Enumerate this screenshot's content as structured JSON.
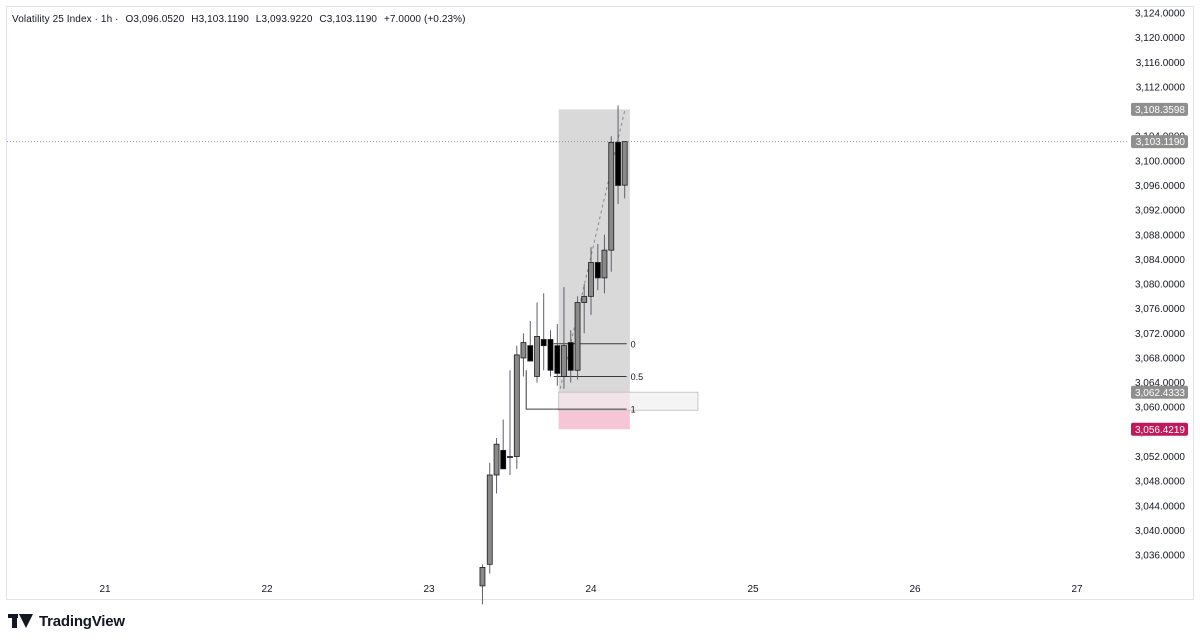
{
  "legend": {
    "symbol": "Volatility 25 Index · 1h ·",
    "open": "O3,096.0520",
    "high": "H3,103.1190",
    "low": "L3,093.9220",
    "close": "C3,103.1190",
    "change": "+7.0000 (+0.23%)"
  },
  "branding": {
    "name": "TradingView",
    "icon": "tradingview-logo-icon"
  },
  "colors": {
    "candle_body": "#8a8a8a",
    "candle_bear": "#000000",
    "wick": "#5d606b",
    "zone_fill": "#d9d9d9",
    "discount_fill": "#f7c6d6",
    "tag_gray": "#8f8f8f",
    "tag_red": "#c2185b"
  },
  "chart_data": {
    "type": "candlestick",
    "title": "Volatility 25 Index · 1h",
    "ylim": [
      3032,
      3126
    ],
    "y_ticks": [
      "3,124.0000",
      "3,120.0000",
      "3,116.0000",
      "3,112.0000",
      "3,108.0000",
      "3,104.0000",
      "3,100.0000",
      "3,096.0000",
      "3,092.0000",
      "3,088.0000",
      "3,084.0000",
      "3,080.0000",
      "3,076.0000",
      "3,072.0000",
      "3,068.0000",
      "3,064.0000",
      "3,060.0000",
      "3,056.0000",
      "3,052.0000",
      "3,048.0000",
      "3,044.0000",
      "3,040.0000",
      "3,036.0000"
    ],
    "y_tick_values": [
      3124,
      3120,
      3116,
      3112,
      3108,
      3104,
      3100,
      3096,
      3092,
      3088,
      3084,
      3080,
      3076,
      3072,
      3068,
      3064,
      3060,
      3056,
      3052,
      3048,
      3044,
      3040,
      3036
    ],
    "x_ticks": [
      "21",
      "22",
      "23",
      "24",
      "25",
      "26",
      "27"
    ],
    "x_tick_days": [
      21,
      22,
      23,
      24,
      25,
      26,
      27
    ],
    "candles": [
      {
        "t": 23.33,
        "o": 3031.0,
        "h": 3034.5,
        "l": 3028.0,
        "c": 3034.0
      },
      {
        "t": 23.375,
        "o": 3034.5,
        "h": 3051.0,
        "l": 3033.0,
        "c": 3049.0
      },
      {
        "t": 23.417,
        "o": 3049.0,
        "h": 3055.0,
        "l": 3046.0,
        "c": 3054.0
      },
      {
        "t": 23.458,
        "o": 3053.0,
        "h": 3058.0,
        "l": 3050.0,
        "c": 3050.0
      },
      {
        "t": 23.5,
        "o": 3052.0,
        "h": 3066.0,
        "l": 3049.0,
        "c": 3052.0
      },
      {
        "t": 23.542,
        "o": 3052.0,
        "h": 3070.0,
        "l": 3050.0,
        "c": 3068.5
      },
      {
        "t": 23.583,
        "o": 3068.0,
        "h": 3072.0,
        "l": 3065.0,
        "c": 3070.5
      },
      {
        "t": 23.625,
        "o": 3070.0,
        "h": 3074.0,
        "l": 3067.5,
        "c": 3067.5
      },
      {
        "t": 23.667,
        "o": 3065.0,
        "h": 3077.0,
        "l": 3064.0,
        "c": 3071.5
      },
      {
        "t": 23.708,
        "o": 3071.0,
        "h": 3078.5,
        "l": 3066.0,
        "c": 3070.0
      },
      {
        "t": 23.75,
        "o": 3071.0,
        "h": 3072.5,
        "l": 3065.0,
        "c": 3066.0
      },
      {
        "t": 23.792,
        "o": 3070.0,
        "h": 3073.5,
        "l": 3063.5,
        "c": 3065.5
      },
      {
        "t": 23.833,
        "o": 3065.0,
        "h": 3079.5,
        "l": 3063.0,
        "c": 3070.0
      },
      {
        "t": 23.875,
        "o": 3070.5,
        "h": 3072.5,
        "l": 3064.0,
        "c": 3066.0
      },
      {
        "t": 23.917,
        "o": 3066.0,
        "h": 3078.0,
        "l": 3064.5,
        "c": 3077.0
      },
      {
        "t": 23.958,
        "o": 3077.0,
        "h": 3080.0,
        "l": 3072.0,
        "c": 3078.0
      },
      {
        "t": 24.0,
        "o": 3078.0,
        "h": 3086.0,
        "l": 3075.0,
        "c": 3083.5
      },
      {
        "t": 24.042,
        "o": 3083.5,
        "h": 3086.5,
        "l": 3079.0,
        "c": 3081.0
      },
      {
        "t": 24.083,
        "o": 3081.0,
        "h": 3088.0,
        "l": 3078.5,
        "c": 3085.5
      },
      {
        "t": 24.125,
        "o": 3085.5,
        "h": 3104.0,
        "l": 3082.0,
        "c": 3103.0
      },
      {
        "t": 24.167,
        "o": 3103.0,
        "h": 3109.0,
        "l": 3093.0,
        "c": 3096.0
      },
      {
        "t": 24.208,
        "o": 3096.052,
        "h": 3103.119,
        "l": 3093.922,
        "c": 3103.119
      }
    ],
    "current_price": 3103.119,
    "price_tags": [
      {
        "label": "3,108.3598",
        "value": 3108.3598,
        "color": "gray"
      },
      {
        "label": "3,103.1190",
        "value": 3103.119,
        "color": "gray"
      },
      {
        "label": "3,062.4333",
        "value": 3062.4333,
        "color": "gray"
      },
      {
        "label": "3,056.4219",
        "value": 3056.4219,
        "color": "red"
      }
    ],
    "fib_levels": [
      {
        "label": "0",
        "value": 3070.3
      },
      {
        "label": "0.5",
        "value": 3065.0
      },
      {
        "label": "1",
        "value": 3059.7
      }
    ],
    "zone": {
      "t_start": 23.8,
      "t_end": 24.24,
      "top": 3108.3598,
      "bottom": 3056.4219,
      "split": 3062.4333
    },
    "discount_box": {
      "t_start": 23.8,
      "t_end": 24.24,
      "top": 3062.4333,
      "bottom": 3056.4219
    },
    "projection_box": {
      "t_start": 23.8,
      "t_end": 24.66,
      "top": 3062.4333,
      "bottom": 3059.5
    },
    "dashed_path": [
      [
        23.81,
        3063.0
      ],
      [
        24.21,
        3108.3598
      ]
    ]
  }
}
